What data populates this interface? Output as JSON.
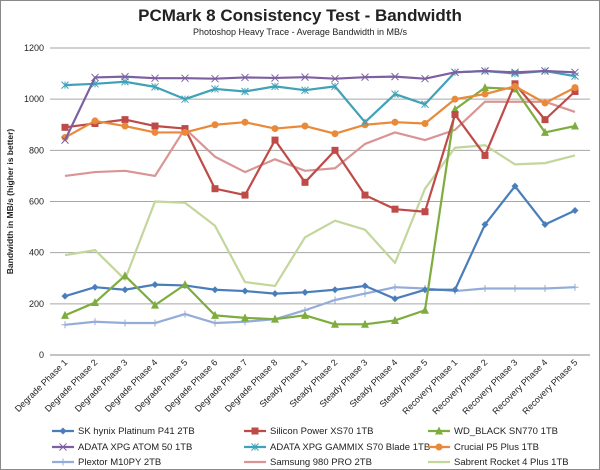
{
  "chart_data": {
    "type": "line",
    "title": "PCMark 8 Consistency Test - Bandwidth",
    "subtitle": "Photoshop Heavy Trace - Average Bandwidth in MB/s",
    "xlabel": "",
    "ylabel": "Bandwidth in MB/s (higher is better)",
    "ylim": [
      0,
      1200
    ],
    "yticks": [
      0,
      200,
      400,
      600,
      800,
      1000,
      1200
    ],
    "grid": true,
    "legend": "bottom",
    "categories": [
      "Degrade Phase 1",
      "Degrade Phase 2",
      "Degrade Phase 3",
      "Degrade Phase 4",
      "Degrade Phase 5",
      "Degrade Phase 6",
      "Degrade Phase 7",
      "Degrade Phase 8",
      "Steady Phase 1",
      "Steady Phase 2",
      "Steady Phase 3",
      "Steady Phase 4",
      "Steady Phase 5",
      "Recovery Phase 1",
      "Recovery Phase 2",
      "Recovery Phase 3",
      "Recovery Phase 4",
      "Recovery Phase 5"
    ],
    "series": [
      {
        "name": "SK hynix Platinum P41 2TB",
        "color": "#4a7ebb",
        "marker": "diamond",
        "values": [
          230,
          265,
          255,
          275,
          272,
          255,
          250,
          240,
          245,
          255,
          270,
          220,
          255,
          255,
          510,
          660,
          510,
          565
        ]
      },
      {
        "name": "Silicon Power XS70 1TB",
        "color": "#be4b48",
        "marker": "square",
        "values": [
          890,
          905,
          920,
          895,
          885,
          650,
          625,
          840,
          675,
          800,
          625,
          570,
          560,
          940,
          780,
          1060,
          920,
          1030
        ]
      },
      {
        "name": "WD_BLACK SN770 1TB",
        "color": "#7eac3f",
        "marker": "triangle",
        "values": [
          155,
          205,
          310,
          195,
          275,
          155,
          145,
          140,
          155,
          120,
          120,
          135,
          175,
          960,
          1045,
          1040,
          870,
          895
        ]
      },
      {
        "name": "ADATA XPG ATOM 50 1TB",
        "color": "#7d60a0",
        "marker": "x",
        "values": [
          840,
          1085,
          1088,
          1082,
          1082,
          1080,
          1085,
          1083,
          1086,
          1080,
          1086,
          1088,
          1080,
          1105,
          1110,
          1105,
          1110,
          1105
        ]
      },
      {
        "name": "ADATA XPG GAMMIX S70 Blade 1TB",
        "color": "#3fa2b8",
        "marker": "asterisk",
        "values": [
          1055,
          1060,
          1068,
          1048,
          1000,
          1040,
          1030,
          1050,
          1035,
          1050,
          910,
          1020,
          980,
          1105,
          1110,
          1100,
          1110,
          1090
        ]
      },
      {
        "name": "Crucial P5 Plus 1TB",
        "color": "#e9893a",
        "marker": "circle",
        "values": [
          850,
          915,
          895,
          870,
          870,
          900,
          910,
          885,
          895,
          865,
          900,
          910,
          905,
          1000,
          1020,
          1050,
          985,
          1045
        ]
      },
      {
        "name": "Plextor M10PY 2TB",
        "color": "#93acd8",
        "marker": "plus",
        "values": [
          118,
          130,
          125,
          125,
          160,
          125,
          130,
          140,
          175,
          215,
          240,
          265,
          260,
          250,
          260,
          260,
          260,
          265
        ]
      },
      {
        "name": "Samsung 980 PRO 2TB",
        "color": "#d99594",
        "marker": "none",
        "values": [
          700,
          715,
          720,
          700,
          885,
          775,
          715,
          765,
          720,
          730,
          825,
          870,
          840,
          880,
          990,
          990,
          990,
          950
        ]
      },
      {
        "name": "Sabrent Rocket 4 Plus 1TB",
        "color": "#c3d69b",
        "marker": "none",
        "values": [
          390,
          410,
          295,
          600,
          595,
          505,
          285,
          270,
          460,
          525,
          490,
          360,
          650,
          810,
          820,
          745,
          750,
          780
        ]
      }
    ]
  }
}
